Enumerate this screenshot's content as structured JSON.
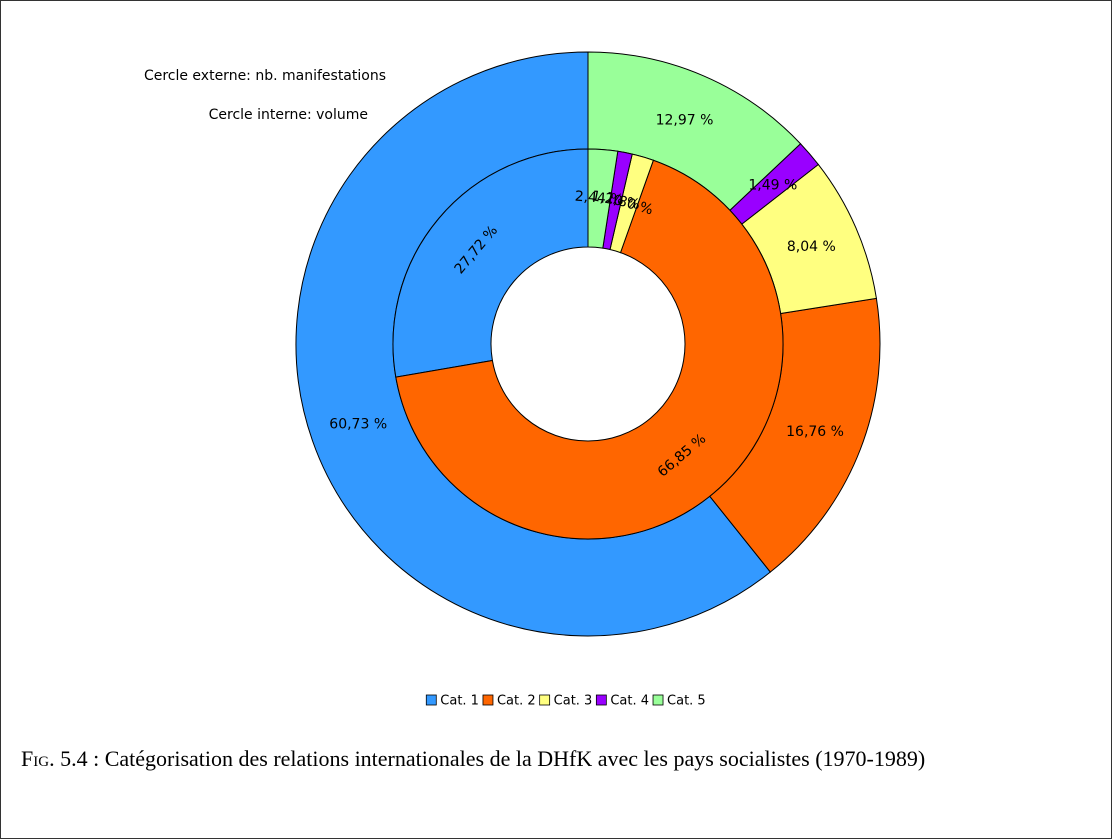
{
  "chart_data": {
    "type": "donut",
    "categories": [
      "Cat. 1",
      "Cat. 2",
      "Cat. 3",
      "Cat. 4",
      "Cat. 5"
    ],
    "colors": [
      "#3399ff",
      "#ff6600",
      "#ffff80",
      "#9900ff",
      "#99ff99"
    ],
    "series": [
      {
        "name": "Cercle externe: nb. manifestations",
        "values": [
          60.73,
          16.76,
          8.04,
          1.49,
          12.97
        ],
        "value_labels": [
          "60,73 %",
          "16,76 %",
          "8,04 %",
          "1,49 %",
          "12,97 %"
        ]
      },
      {
        "name": "Cercle interne: volume",
        "values": [
          27.72,
          66.85,
          1.8,
          1.2,
          2.44
        ],
        "value_labels": [
          "27,72 %",
          "66,85 %",
          "1,80 %",
          "1,20 %",
          "2,44 %"
        ]
      }
    ],
    "legend": "bottom"
  },
  "caption": {
    "label": "Fig. 5.4 :",
    "text": "Catégorisation des relations internationales de la DHfK avec les pays socialistes (1970-1989)"
  }
}
